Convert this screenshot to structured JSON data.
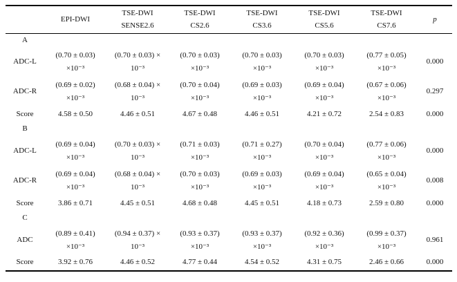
{
  "header": {
    "cols": [
      {
        "l1": "EPI-DWI",
        "l2": ""
      },
      {
        "l1": "TSE-DWI",
        "l2": "SENSE2.6"
      },
      {
        "l1": "TSE-DWI",
        "l2": "CS2.6"
      },
      {
        "l1": "TSE-DWI",
        "l2": "CS3.6"
      },
      {
        "l1": "TSE-DWI",
        "l2": "CS5.6"
      },
      {
        "l1": "TSE-DWI",
        "l2": "CS7.6"
      }
    ],
    "p": "p"
  },
  "sections": [
    {
      "label": "A",
      "rows": [
        {
          "label": "ADC-L",
          "p": "0.000",
          "cells": [
            {
              "l1": "(0.70 ± 0.03)",
              "l2": "×10⁻³"
            },
            {
              "l1": "(0.70 ± 0.03) ×",
              "l2": "10⁻³"
            },
            {
              "l1": "(0.70 ± 0.03)",
              "l2": "×10⁻³"
            },
            {
              "l1": "(0.70 ± 0.03)",
              "l2": "×10⁻³"
            },
            {
              "l1": "(0.70 ± 0.03)",
              "l2": "×10⁻³"
            },
            {
              "l1": "(0.77 ± 0.05)",
              "l2": "×10⁻³"
            }
          ]
        },
        {
          "label": "ADC-R",
          "p": "0.297",
          "cells": [
            {
              "l1": "(0.69 ± 0.02)",
              "l2": "×10⁻³"
            },
            {
              "l1": "(0.68 ± 0.04) ×",
              "l2": "10⁻³"
            },
            {
              "l1": "(0.70 ± 0.04)",
              "l2": "×10⁻³"
            },
            {
              "l1": "(0.69 ± 0.03)",
              "l2": "×10⁻³"
            },
            {
              "l1": "(0.69 ± 0.04)",
              "l2": "×10⁻³"
            },
            {
              "l1": "(0.67 ± 0.06)",
              "l2": "×10⁻³"
            }
          ]
        },
        {
          "label": "Score",
          "p": "0.000",
          "cells": [
            {
              "l1": "4.58 ± 0.50"
            },
            {
              "l1": "4.46 ± 0.51"
            },
            {
              "l1": "4.67 ± 0.48"
            },
            {
              "l1": "4.46 ± 0.51"
            },
            {
              "l1": "4.21 ± 0.72"
            },
            {
              "l1": "2.54 ± 0.83"
            }
          ]
        }
      ]
    },
    {
      "label": "B",
      "rows": [
        {
          "label": "ADC-L",
          "p": "0.000",
          "cells": [
            {
              "l1": "(0.69 ± 0.04)",
              "l2": "×10⁻³"
            },
            {
              "l1": "(0.70 ± 0.03) ×",
              "l2": "10⁻³"
            },
            {
              "l1": "(0.71 ± 0.03)",
              "l2": "×10⁻³"
            },
            {
              "l1": "(0.71 ± 0.27)",
              "l2": "×10⁻³"
            },
            {
              "l1": "(0.70 ± 0.04)",
              "l2": "×10⁻³"
            },
            {
              "l1": "(0.77 ± 0.06)",
              "l2": "×10⁻³"
            }
          ]
        },
        {
          "label": "ADC-R",
          "p": "0.008",
          "cells": [
            {
              "l1": "(0.69 ± 0.04)",
              "l2": "×10⁻³"
            },
            {
              "l1": "(0.68 ± 0.04) ×",
              "l2": "10⁻³"
            },
            {
              "l1": "(0.70 ± 0.03)",
              "l2": "×10⁻³"
            },
            {
              "l1": "(0.69 ± 0.03)",
              "l2": "×10⁻³"
            },
            {
              "l1": "(0.69 ± 0.04)",
              "l2": "×10⁻³"
            },
            {
              "l1": "(0.65 ± 0.04)",
              "l2": "×10⁻³"
            }
          ]
        },
        {
          "label": "Score",
          "p": "0.000",
          "cells": [
            {
              "l1": "3.86 ± 0.71"
            },
            {
              "l1": "4.45 ± 0.51"
            },
            {
              "l1": "4.68 ± 0.48"
            },
            {
              "l1": "4.45 ± 0.51"
            },
            {
              "l1": "4.18 ± 0.73"
            },
            {
              "l1": "2.59 ± 0.80"
            }
          ]
        }
      ]
    },
    {
      "label": "C",
      "rows": [
        {
          "label": "ADC",
          "p": "0.961",
          "cells": [
            {
              "l1": "(0.89 ± 0.41)",
              "l2": "×10⁻³"
            },
            {
              "l1": "(0.94 ± 0.37) ×",
              "l2": "10⁻³"
            },
            {
              "l1": "(0.93 ± 0.37)",
              "l2": "×10⁻³"
            },
            {
              "l1": "(0.93 ± 0.37)",
              "l2": "×10⁻³"
            },
            {
              "l1": "(0.92 ± 0.36)",
              "l2": "×10⁻³"
            },
            {
              "l1": "(0.99 ± 0.37)",
              "l2": "×10⁻³"
            }
          ]
        },
        {
          "label": "Score",
          "p": "0.000",
          "cells": [
            {
              "l1": "3.92 ± 0.76"
            },
            {
              "l1": "4.46 ± 0.52"
            },
            {
              "l1": "4.77 ± 0.44"
            },
            {
              "l1": "4.54 ± 0.52"
            },
            {
              "l1": "4.31 ± 0.75"
            },
            {
              "l1": "2.46 ± 0.66"
            }
          ]
        }
      ]
    }
  ]
}
